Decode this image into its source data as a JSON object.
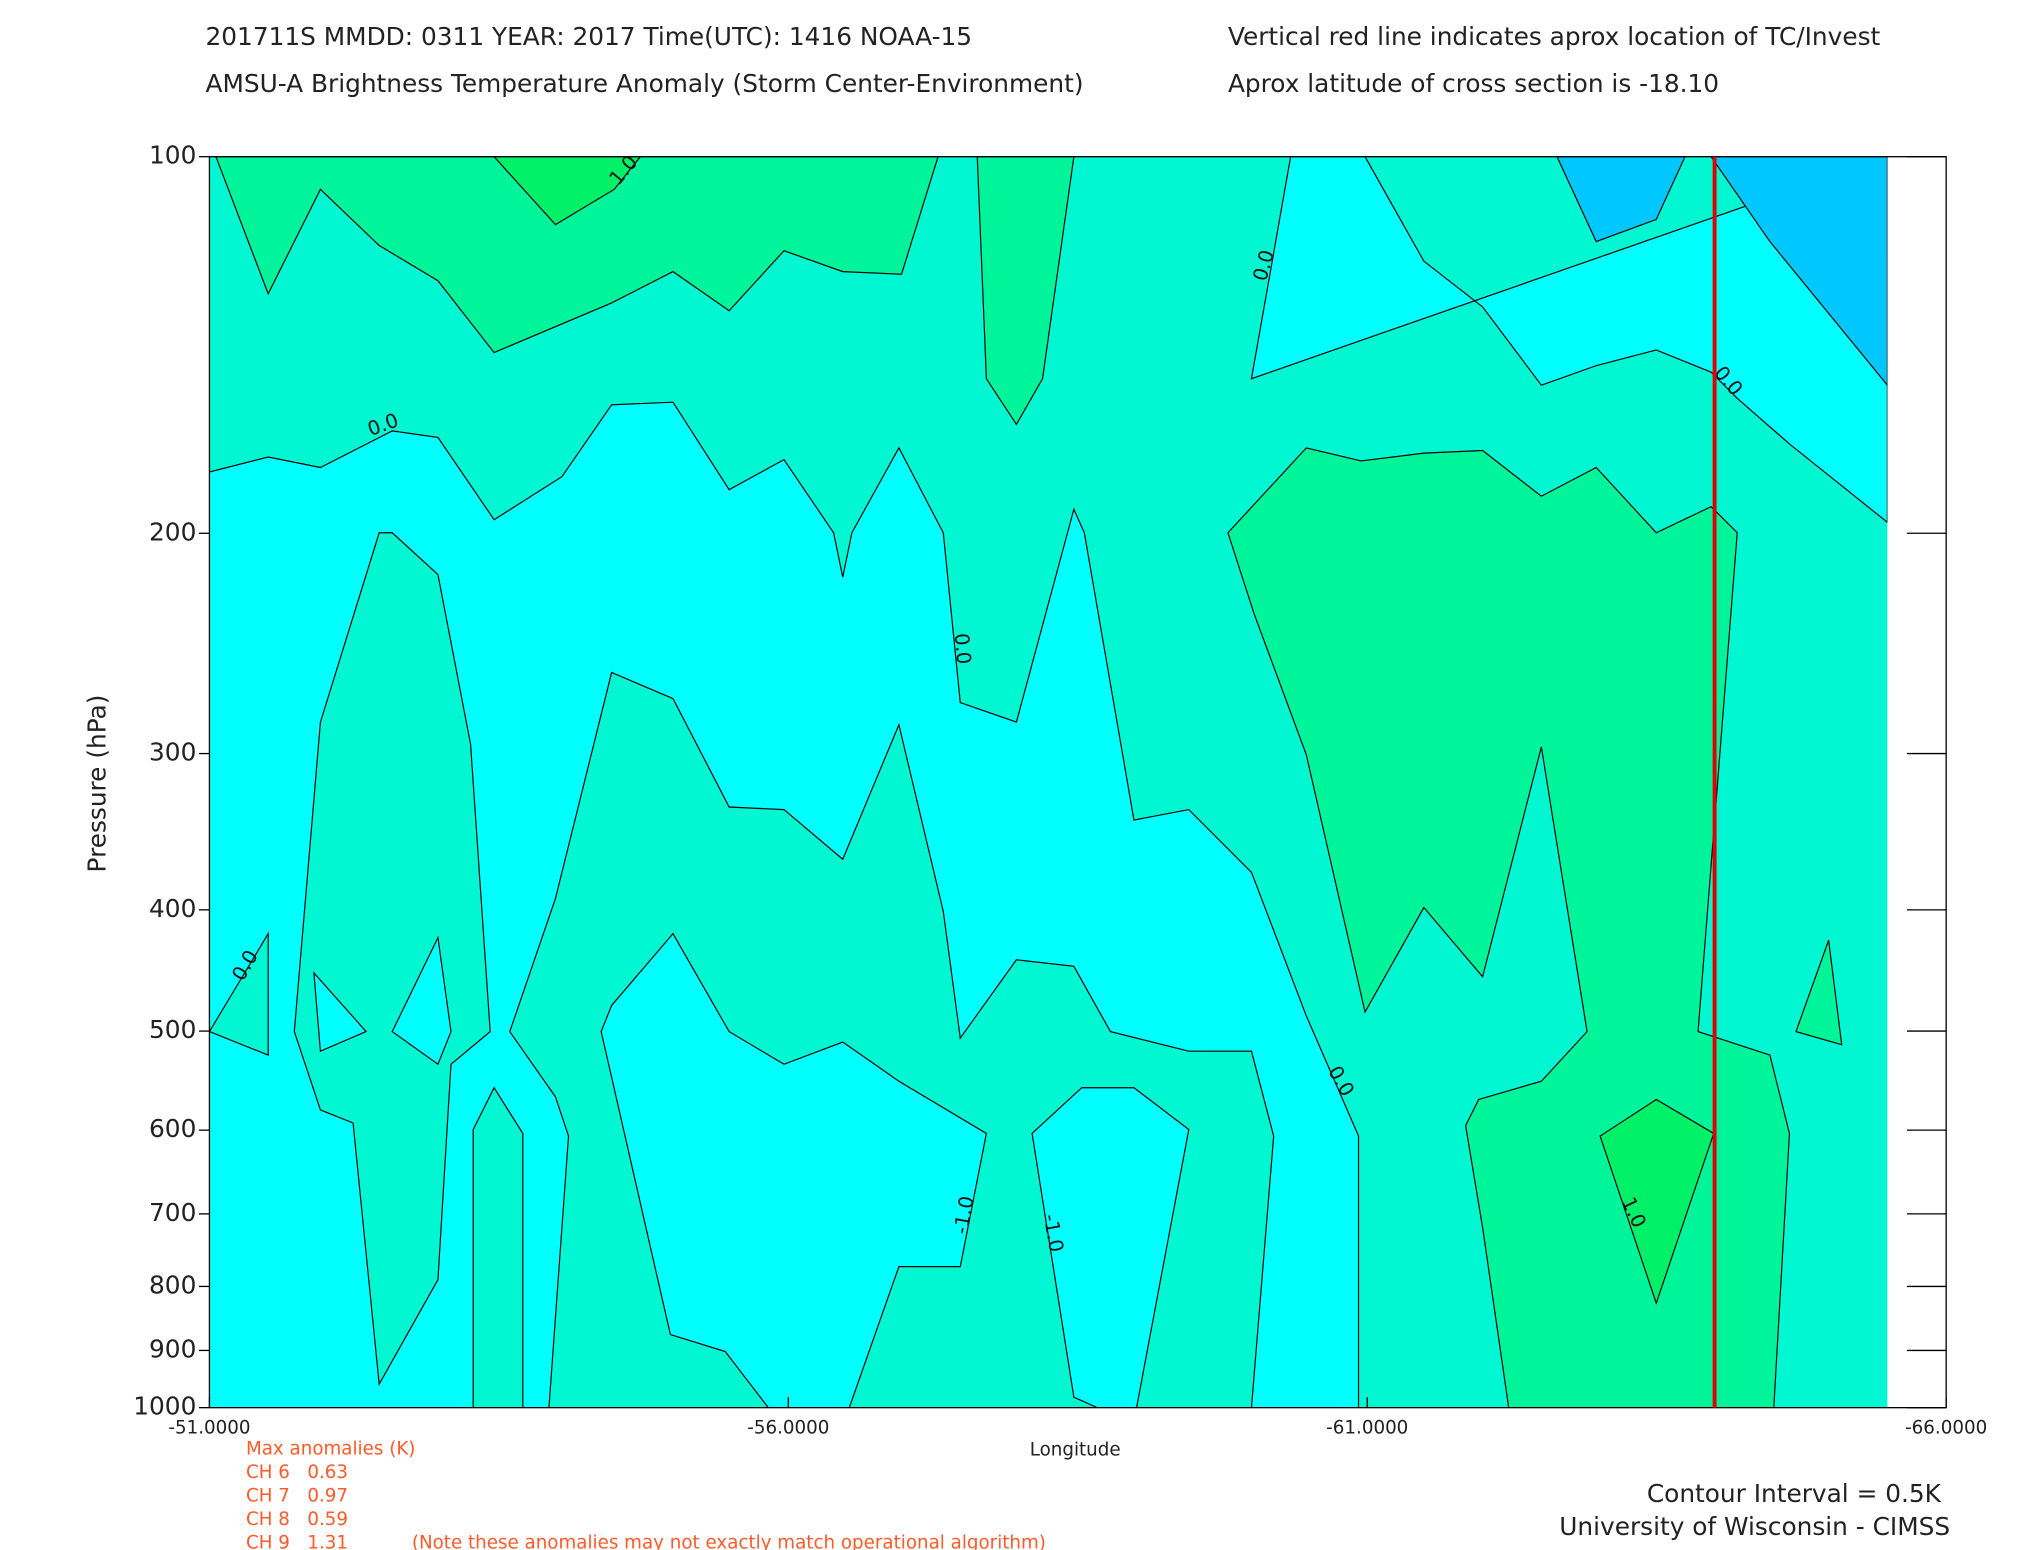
{
  "chart_data": {
    "type": "contour",
    "header": [
      "201711S  MMDD: 0311 YEAR: 2017 Time(UTC): 1416 NOAA-15",
      "AMSU-A Brightness Temperature Anomaly (Storm Center-Environment)"
    ],
    "header_right": [
      "Vertical red line indicates aprox location of TC/Invest",
      "Aprox latitude of cross section is -18.10"
    ],
    "xlabel": "Longitude",
    "ylabel": "Pressure (hPa)",
    "xlim": [
      -51,
      -66
    ],
    "xticks": [
      {
        "value": -51,
        "label": "-51.0000"
      },
      {
        "value": -56,
        "label": "-56.0000"
      },
      {
        "value": -61,
        "label": "-61.0000"
      },
      {
        "value": -66,
        "label": "-66.0000"
      }
    ],
    "ylim": [
      100,
      1000
    ],
    "yscale": "log",
    "yinverted": true,
    "yticks": [
      100,
      200,
      300,
      400,
      500,
      600,
      700,
      800,
      900,
      1000
    ],
    "tc_longitude": -64,
    "tc_line_color": "#e00000",
    "contour_labels": [
      "1.0",
      "0.0",
      "0.0",
      "0.0",
      "0.0",
      "0.0",
      "0.0",
      "-1.0",
      "-1.0",
      "1.0"
    ],
    "max_anomalies_title": "Max anomalies (K)",
    "max_anomalies": [
      {
        "channel": "CH 6",
        "value": 0.63
      },
      {
        "channel": "CH 7",
        "value": 0.97
      },
      {
        "channel": "CH 8",
        "value": 0.59
      },
      {
        "channel": "CH 9",
        "value": 1.31
      }
    ],
    "note": "(Note these anomalies may not exactly match operational algorithm)",
    "footer": [
      "Contour Interval = 0.5K",
      "University of Wisconsin - CIMSS"
    ]
  }
}
